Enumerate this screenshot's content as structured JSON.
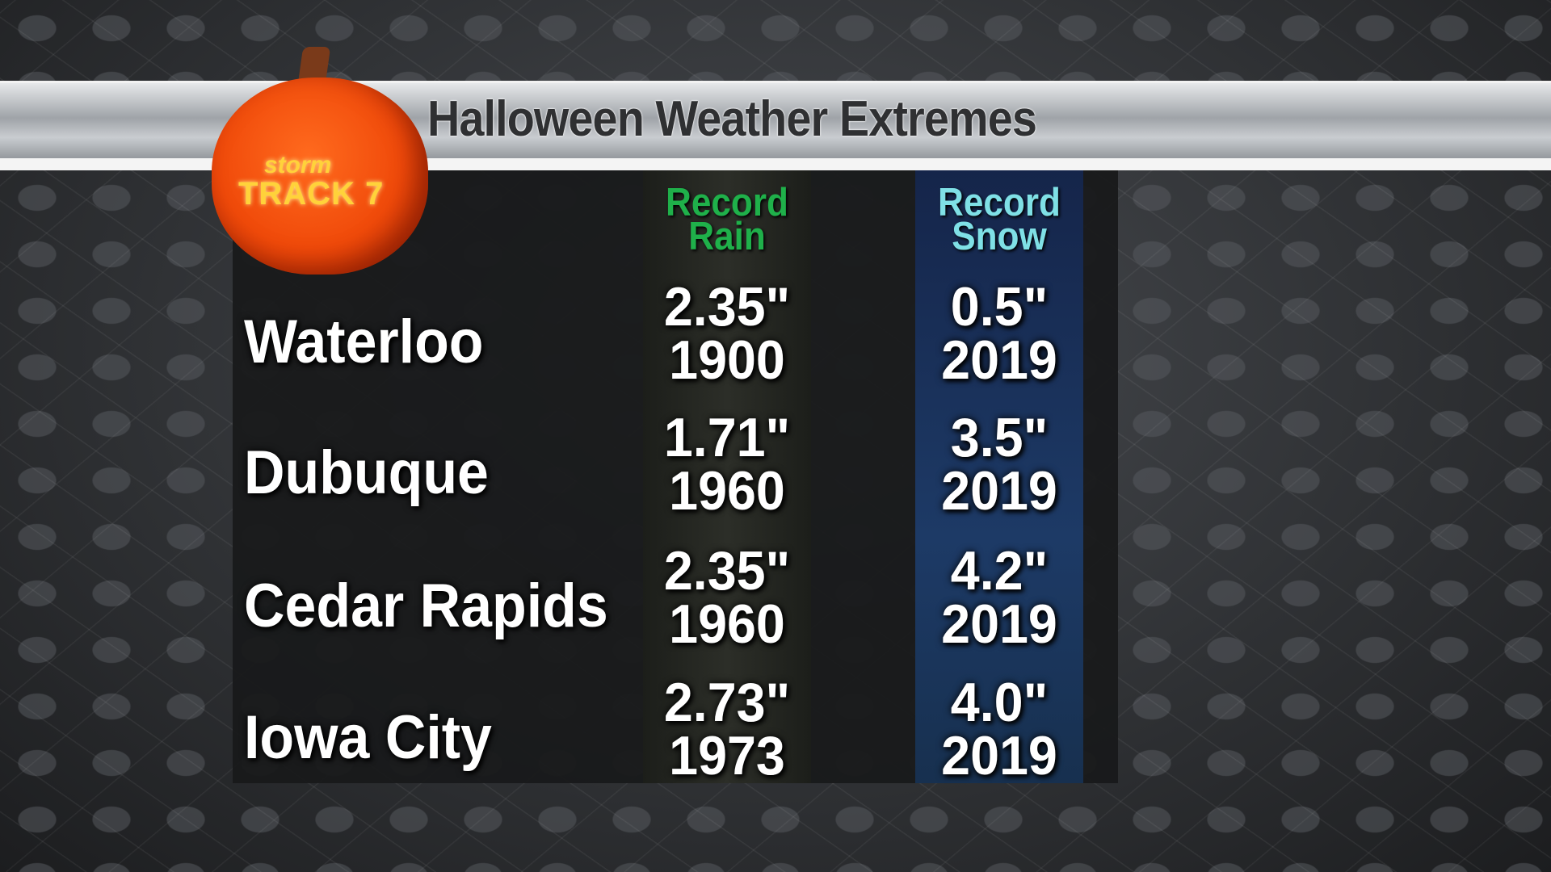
{
  "title": "Halloween Weather Extremes",
  "logo": {
    "line1": "storm",
    "line2": "TRACK 7"
  },
  "headers": {
    "rain": [
      "Record",
      "Rain"
    ],
    "snow": [
      "Record",
      "Snow"
    ]
  },
  "colors": {
    "rain_header": "#1fb04a",
    "snow_header": "#7fe0e6",
    "pumpkin": "#f04a0a"
  },
  "rows": [
    {
      "city": "Waterloo",
      "rain": "2.35\"",
      "rain_year": "1900",
      "snow": "0.5\"",
      "snow_year": "2019"
    },
    {
      "city": "Dubuque",
      "rain": "1.71\"",
      "rain_year": "1960",
      "snow": "3.5\"",
      "snow_year": "2019"
    },
    {
      "city": "Cedar Rapids",
      "rain": "2.35\"",
      "rain_year": "1960",
      "snow": "4.2\"",
      "snow_year": "2019"
    },
    {
      "city": "Iowa City",
      "rain": "2.73\"",
      "rain_year": "1973",
      "snow": "4.0\"",
      "snow_year": "2019"
    }
  ]
}
